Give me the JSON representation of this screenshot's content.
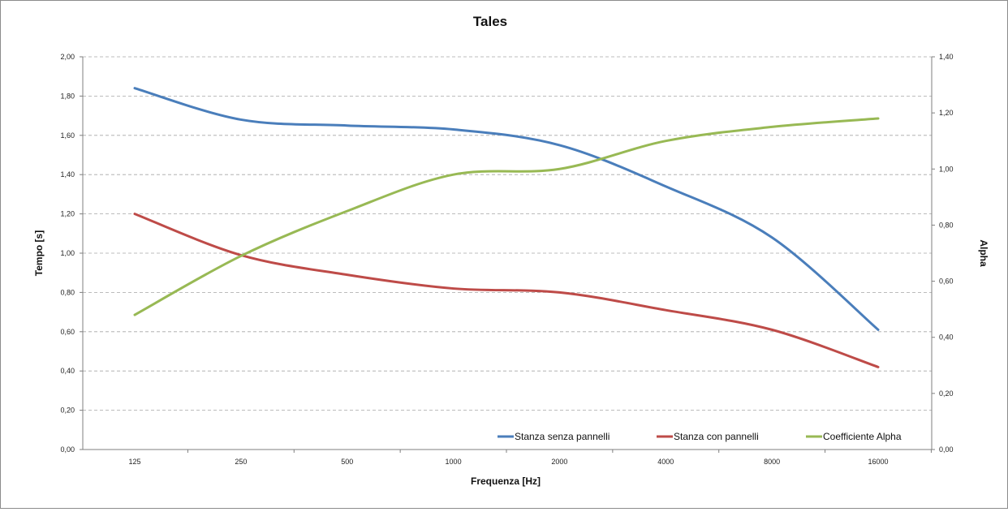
{
  "chart_data": {
    "type": "line",
    "title": "Tales",
    "xlabel": "Frequenza [Hz]",
    "ylabel": "Tempo [s]",
    "y2label": "Alpha",
    "categories": [
      "125",
      "250",
      "500",
      "1000",
      "2000",
      "4000",
      "8000",
      "16000"
    ],
    "ylim": [
      0,
      2
    ],
    "y2lim": [
      0,
      1.4
    ],
    "yticks": [
      "0,00",
      "0,20",
      "0,40",
      "0,60",
      "0,80",
      "1,00",
      "1,20",
      "1,40",
      "1,60",
      "1,80",
      "2,00"
    ],
    "y2ticks": [
      "0,00",
      "0,20",
      "0,40",
      "0,60",
      "0,80",
      "1,00",
      "1,20",
      "1,40"
    ],
    "grid": true,
    "legend_position": "bottom-right",
    "series": [
      {
        "name": "Stanza senza pannelli",
        "axis": "left",
        "color": "#4a7ebb",
        "values": [
          1.84,
          1.68,
          1.65,
          1.63,
          1.55,
          1.34,
          1.08,
          0.61
        ]
      },
      {
        "name": "Stanza con pannelli",
        "axis": "left",
        "color": "#be4b48",
        "values": [
          1.2,
          0.99,
          0.89,
          0.82,
          0.8,
          0.71,
          0.61,
          0.42
        ]
      },
      {
        "name": "Coefficiente Alpha",
        "axis": "right",
        "color": "#98b954",
        "values": [
          0.48,
          0.69,
          0.85,
          0.98,
          1.0,
          1.1,
          1.15,
          1.18
        ]
      }
    ]
  }
}
